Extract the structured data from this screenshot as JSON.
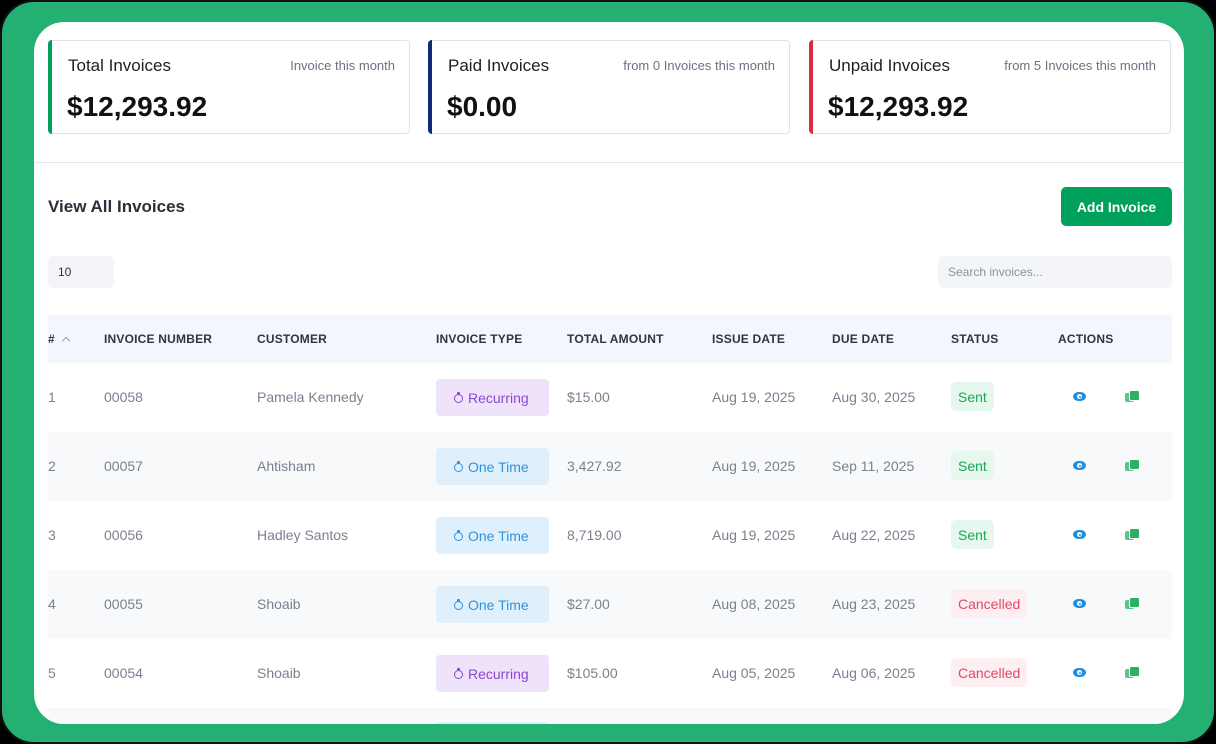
{
  "cards": [
    {
      "title": "Total Invoices",
      "subtitle": "Invoice this month",
      "amount": "$12,293.92",
      "accent": "#00a15a"
    },
    {
      "title": "Paid Invoices",
      "subtitle": "from 0 Invoices this month",
      "amount": "$0.00",
      "accent": "#102a7a"
    },
    {
      "title": "Unpaid Invoices",
      "subtitle": "from 5 Invoices this month",
      "amount": "$12,293.92",
      "accent": "#dc2f3d"
    }
  ],
  "section": {
    "title": "View All Invoices",
    "add_label": "Add Invoice"
  },
  "controls": {
    "page_size": "10",
    "search_placeholder": "Search invoices..."
  },
  "columns": {
    "num": "#",
    "invoice_number": "INVOICE NUMBER",
    "customer": "CUSTOMER",
    "invoice_type": "INVOICE TYPE",
    "total_amount": "TOTAL AMOUNT",
    "issue_date": "ISSUE DATE",
    "due_date": "DUE DATE",
    "status": "STATUS",
    "actions": "ACTIONS"
  },
  "rows": [
    {
      "num": "1",
      "invoice_number": "00058",
      "customer": "Pamela Kennedy",
      "type": "Recurring",
      "type_kind": "recurring",
      "amount": "$15.00",
      "issue": "Aug 19, 2025",
      "due": "Aug 30, 2025",
      "status": "Sent",
      "status_kind": "sent"
    },
    {
      "num": "2",
      "invoice_number": "00057",
      "customer": "Ahtisham",
      "type": "One Time",
      "type_kind": "onetime",
      "amount": "3,427.92",
      "issue": "Aug 19, 2025",
      "due": "Sep 11, 2025",
      "status": "Sent",
      "status_kind": "sent"
    },
    {
      "num": "3",
      "invoice_number": "00056",
      "customer": "Hadley Santos",
      "type": "One Time",
      "type_kind": "onetime",
      "amount": "8,719.00",
      "issue": "Aug 19, 2025",
      "due": "Aug 22, 2025",
      "status": "Sent",
      "status_kind": "sent"
    },
    {
      "num": "4",
      "invoice_number": "00055",
      "customer": "Shoaib",
      "type": "One Time",
      "type_kind": "onetime",
      "amount": "$27.00",
      "issue": "Aug 08, 2025",
      "due": "Aug 23, 2025",
      "status": "Cancelled",
      "status_kind": "cancelled"
    },
    {
      "num": "5",
      "invoice_number": "00054",
      "customer": "Shoaib",
      "type": "Recurring",
      "type_kind": "recurring",
      "amount": "$105.00",
      "issue": "Aug 05, 2025",
      "due": "Aug 06, 2025",
      "status": "Cancelled",
      "status_kind": "cancelled"
    }
  ],
  "icons": {
    "view": "eye-icon",
    "duplicate": "copy-icon",
    "sort": "chevron-up-icon",
    "type": "clock-icon"
  }
}
